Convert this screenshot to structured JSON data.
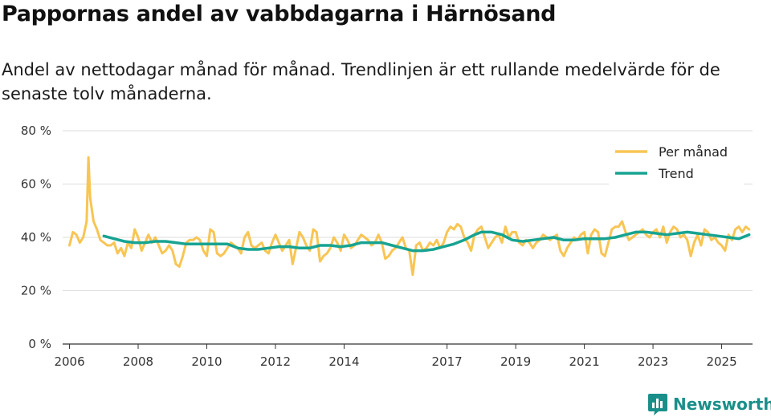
{
  "title": "Pappornas andel av vabbdagarna i Härnösand",
  "subtitle": "Andel av nettodagar månad för månad. Trendlinjen är ett rullande medelvärde för de senaste tolv månaderna.",
  "brand": {
    "name": "Newsworthy",
    "icon": "bar-chart-logo-icon"
  },
  "colors": {
    "monthly": "#f8c553",
    "trend": "#17a392",
    "grid": "#dddddd",
    "axis": "#333333",
    "brand": "#1a8f8a"
  },
  "chart_data": {
    "type": "line",
    "title": "Pappornas andel av vabbdagarna i Härnösand",
    "xlabel": "",
    "ylabel": "",
    "ylim": [
      0,
      80
    ],
    "xlim": [
      2005.8,
      2025.9
    ],
    "y_ticks": [
      0,
      20,
      40,
      60,
      80
    ],
    "y_tick_labels": [
      "0 %",
      "20 %",
      "40 %",
      "60 %",
      "80 %"
    ],
    "x_ticks": [
      2006,
      2008,
      2010,
      2012,
      2014,
      2017,
      2019,
      2021,
      2023,
      2025
    ],
    "x_tick_labels": [
      "2006",
      "2008",
      "2010",
      "2012",
      "2014",
      "2017",
      "2019",
      "2021",
      "2023",
      "2025"
    ],
    "grid": true,
    "legend": {
      "position": "top-right",
      "items": [
        "Per månad",
        "Trend"
      ]
    },
    "series": [
      {
        "name": "Per månad",
        "color": "#f8c553",
        "points": [
          [
            2006.0,
            37
          ],
          [
            2006.1,
            42
          ],
          [
            2006.2,
            41
          ],
          [
            2006.3,
            38
          ],
          [
            2006.4,
            40
          ],
          [
            2006.5,
            46
          ],
          [
            2006.55,
            70
          ],
          [
            2006.6,
            55
          ],
          [
            2006.7,
            46
          ],
          [
            2006.8,
            43
          ],
          [
            2006.9,
            39
          ],
          [
            2007.0,
            38
          ],
          [
            2007.1,
            37
          ],
          [
            2007.2,
            37
          ],
          [
            2007.3,
            38
          ],
          [
            2007.4,
            34
          ],
          [
            2007.5,
            36
          ],
          [
            2007.6,
            33
          ],
          [
            2007.7,
            38
          ],
          [
            2007.8,
            36
          ],
          [
            2007.9,
            43
          ],
          [
            2008.0,
            40
          ],
          [
            2008.1,
            35
          ],
          [
            2008.2,
            38
          ],
          [
            2008.3,
            41
          ],
          [
            2008.4,
            38
          ],
          [
            2008.5,
            40
          ],
          [
            2008.6,
            37
          ],
          [
            2008.7,
            34
          ],
          [
            2008.8,
            35
          ],
          [
            2008.9,
            37
          ],
          [
            2009.0,
            35
          ],
          [
            2009.1,
            30
          ],
          [
            2009.2,
            29
          ],
          [
            2009.3,
            33
          ],
          [
            2009.4,
            38
          ],
          [
            2009.5,
            39
          ],
          [
            2009.6,
            39
          ],
          [
            2009.7,
            40
          ],
          [
            2009.8,
            39
          ],
          [
            2009.9,
            35
          ],
          [
            2010.0,
            33
          ],
          [
            2010.1,
            43
          ],
          [
            2010.2,
            42
          ],
          [
            2010.3,
            34
          ],
          [
            2010.4,
            33
          ],
          [
            2010.5,
            34
          ],
          [
            2010.6,
            36
          ],
          [
            2010.7,
            38
          ],
          [
            2010.8,
            37
          ],
          [
            2010.9,
            36
          ],
          [
            2011.0,
            34
          ],
          [
            2011.1,
            40
          ],
          [
            2011.2,
            42
          ],
          [
            2011.3,
            37
          ],
          [
            2011.4,
            36
          ],
          [
            2011.5,
            37
          ],
          [
            2011.6,
            38
          ],
          [
            2011.7,
            35
          ],
          [
            2011.8,
            34
          ],
          [
            2011.9,
            38
          ],
          [
            2012.0,
            41
          ],
          [
            2012.1,
            38
          ],
          [
            2012.2,
            35
          ],
          [
            2012.3,
            37
          ],
          [
            2012.4,
            39
          ],
          [
            2012.5,
            30
          ],
          [
            2012.6,
            36
          ],
          [
            2012.7,
            42
          ],
          [
            2012.8,
            40
          ],
          [
            2012.9,
            37
          ],
          [
            2013.0,
            35
          ],
          [
            2013.1,
            43
          ],
          [
            2013.2,
            42
          ],
          [
            2013.3,
            31
          ],
          [
            2013.4,
            33
          ],
          [
            2013.5,
            34
          ],
          [
            2013.6,
            36
          ],
          [
            2013.7,
            40
          ],
          [
            2013.8,
            38
          ],
          [
            2013.9,
            35
          ],
          [
            2014.0,
            41
          ],
          [
            2014.1,
            39
          ],
          [
            2014.2,
            36
          ],
          [
            2014.3,
            37
          ],
          [
            2014.4,
            39
          ],
          [
            2014.5,
            41
          ],
          [
            2014.6,
            40
          ],
          [
            2014.7,
            39
          ],
          [
            2014.8,
            37
          ],
          [
            2014.9,
            38
          ],
          [
            2015.0,
            41
          ],
          [
            2015.1,
            38
          ],
          [
            2015.2,
            32
          ],
          [
            2015.3,
            33
          ],
          [
            2015.4,
            35
          ],
          [
            2015.5,
            36
          ],
          [
            2015.6,
            38
          ],
          [
            2015.7,
            40
          ],
          [
            2015.8,
            36
          ],
          [
            2015.9,
            35
          ],
          [
            2016.0,
            26
          ],
          [
            2016.1,
            37
          ],
          [
            2016.2,
            38
          ],
          [
            2016.3,
            35
          ],
          [
            2016.4,
            36
          ],
          [
            2016.5,
            38
          ],
          [
            2016.6,
            37
          ],
          [
            2016.7,
            39
          ],
          [
            2016.8,
            36
          ],
          [
            2016.9,
            38
          ],
          [
            2017.0,
            42
          ],
          [
            2017.1,
            44
          ],
          [
            2017.2,
            43
          ],
          [
            2017.3,
            45
          ],
          [
            2017.4,
            44
          ],
          [
            2017.5,
            40
          ],
          [
            2017.6,
            38
          ],
          [
            2017.7,
            35
          ],
          [
            2017.8,
            41
          ],
          [
            2017.9,
            43
          ],
          [
            2018.0,
            44
          ],
          [
            2018.1,
            40
          ],
          [
            2018.2,
            36
          ],
          [
            2018.3,
            38
          ],
          [
            2018.4,
            40
          ],
          [
            2018.5,
            41
          ],
          [
            2018.6,
            38
          ],
          [
            2018.7,
            44
          ],
          [
            2018.8,
            40
          ],
          [
            2018.9,
            42
          ],
          [
            2019.0,
            42
          ],
          [
            2019.1,
            38
          ],
          [
            2019.2,
            37
          ],
          [
            2019.3,
            39
          ],
          [
            2019.4,
            38
          ],
          [
            2019.5,
            36
          ],
          [
            2019.6,
            38
          ],
          [
            2019.7,
            39
          ],
          [
            2019.8,
            41
          ],
          [
            2019.9,
            40
          ],
          [
            2020.0,
            39
          ],
          [
            2020.1,
            40
          ],
          [
            2020.2,
            41
          ],
          [
            2020.3,
            35
          ],
          [
            2020.4,
            33
          ],
          [
            2020.5,
            36
          ],
          [
            2020.6,
            38
          ],
          [
            2020.7,
            40
          ],
          [
            2020.8,
            39
          ],
          [
            2020.9,
            41
          ],
          [
            2021.0,
            42
          ],
          [
            2021.1,
            34
          ],
          [
            2021.2,
            41
          ],
          [
            2021.3,
            43
          ],
          [
            2021.4,
            42
          ],
          [
            2021.5,
            34
          ],
          [
            2021.6,
            33
          ],
          [
            2021.7,
            38
          ],
          [
            2021.8,
            43
          ],
          [
            2021.9,
            44
          ],
          [
            2022.0,
            44
          ],
          [
            2022.1,
            46
          ],
          [
            2022.2,
            42
          ],
          [
            2022.3,
            39
          ],
          [
            2022.4,
            40
          ],
          [
            2022.5,
            41
          ],
          [
            2022.6,
            42
          ],
          [
            2022.7,
            43
          ],
          [
            2022.8,
            41
          ],
          [
            2022.9,
            40
          ],
          [
            2023.0,
            42
          ],
          [
            2023.1,
            43
          ],
          [
            2023.2,
            40
          ],
          [
            2023.3,
            44
          ],
          [
            2023.4,
            38
          ],
          [
            2023.5,
            42
          ],
          [
            2023.6,
            44
          ],
          [
            2023.7,
            43
          ],
          [
            2023.8,
            40
          ],
          [
            2023.9,
            41
          ],
          [
            2024.0,
            39
          ],
          [
            2024.1,
            33
          ],
          [
            2024.2,
            38
          ],
          [
            2024.3,
            41
          ],
          [
            2024.4,
            37
          ],
          [
            2024.5,
            43
          ],
          [
            2024.6,
            42
          ],
          [
            2024.7,
            39
          ],
          [
            2024.8,
            40
          ],
          [
            2024.9,
            38
          ],
          [
            2025.0,
            37
          ],
          [
            2025.1,
            35
          ],
          [
            2025.2,
            41
          ],
          [
            2025.3,
            39
          ],
          [
            2025.4,
            43
          ],
          [
            2025.5,
            44
          ],
          [
            2025.6,
            42
          ],
          [
            2025.7,
            44
          ],
          [
            2025.8,
            43
          ]
        ]
      },
      {
        "name": "Trend",
        "color": "#17a392",
        "points": [
          [
            2007.0,
            40.5
          ],
          [
            2007.3,
            39.5
          ],
          [
            2007.6,
            38.5
          ],
          [
            2007.9,
            38
          ],
          [
            2008.2,
            38
          ],
          [
            2008.5,
            38.5
          ],
          [
            2008.8,
            38.5
          ],
          [
            2009.1,
            38
          ],
          [
            2009.4,
            37.5
          ],
          [
            2009.7,
            37.5
          ],
          [
            2010.0,
            37.5
          ],
          [
            2010.3,
            37.5
          ],
          [
            2010.6,
            37.5
          ],
          [
            2010.9,
            36
          ],
          [
            2011.2,
            35.5
          ],
          [
            2011.5,
            35.5
          ],
          [
            2011.8,
            36
          ],
          [
            2012.1,
            36.5
          ],
          [
            2012.4,
            36.5
          ],
          [
            2012.7,
            36
          ],
          [
            2013.0,
            36
          ],
          [
            2013.3,
            37
          ],
          [
            2013.6,
            37
          ],
          [
            2013.9,
            36.5
          ],
          [
            2014.2,
            37
          ],
          [
            2014.5,
            38
          ],
          [
            2014.8,
            38
          ],
          [
            2015.1,
            38
          ],
          [
            2015.4,
            37
          ],
          [
            2015.7,
            36
          ],
          [
            2016.0,
            35
          ],
          [
            2016.3,
            35
          ],
          [
            2016.6,
            35.5
          ],
          [
            2016.9,
            36.5
          ],
          [
            2017.2,
            37.5
          ],
          [
            2017.5,
            39
          ],
          [
            2017.8,
            41
          ],
          [
            2018.0,
            42
          ],
          [
            2018.3,
            42
          ],
          [
            2018.6,
            41
          ],
          [
            2018.9,
            39
          ],
          [
            2019.2,
            38.5
          ],
          [
            2019.5,
            39
          ],
          [
            2019.8,
            39.5
          ],
          [
            2020.1,
            40
          ],
          [
            2020.4,
            39
          ],
          [
            2020.7,
            39
          ],
          [
            2021.0,
            39.5
          ],
          [
            2021.3,
            39.5
          ],
          [
            2021.6,
            39.5
          ],
          [
            2021.9,
            40
          ],
          [
            2022.2,
            41
          ],
          [
            2022.5,
            42
          ],
          [
            2022.8,
            42
          ],
          [
            2023.1,
            41.5
          ],
          [
            2023.4,
            41
          ],
          [
            2023.7,
            41.5
          ],
          [
            2024.0,
            42
          ],
          [
            2024.3,
            41.5
          ],
          [
            2024.6,
            41
          ],
          [
            2024.9,
            40.5
          ],
          [
            2025.2,
            40
          ],
          [
            2025.5,
            39.5
          ],
          [
            2025.8,
            41
          ]
        ]
      }
    ]
  }
}
